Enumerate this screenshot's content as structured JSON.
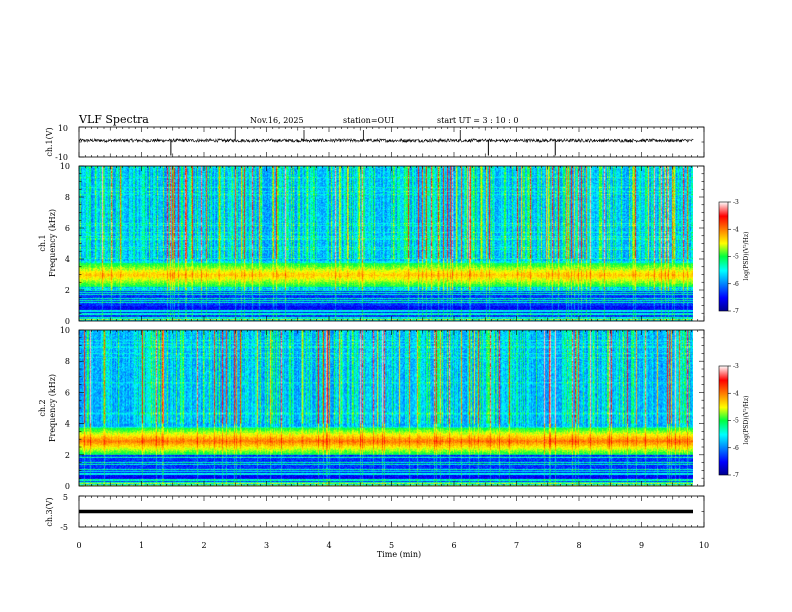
{
  "header": {
    "title": "VLF Spectra",
    "date": "Nov.16, 2025",
    "station": "station=OUI",
    "start": "start  UT =   3  : 10 : 0"
  },
  "chart_data": [
    {
      "type": "line",
      "ylabel": "ch.1(V)",
      "ylim": [
        -10,
        10
      ],
      "ytick_labels": [
        "10",
        "-10"
      ],
      "x_ticks": [
        0,
        1,
        2,
        3,
        4,
        5,
        6,
        7,
        8,
        9,
        10
      ],
      "description_series": "noisy waveform around +1 V with sparse negative spikes",
      "baseline_v": 1,
      "spikes_min": [
        1.47,
        6.55,
        7.62
      ]
    },
    {
      "type": "heatmap",
      "ylabel": "ch.1\nFrequency (kHz)",
      "ylabel_line1": "ch.1",
      "ylabel_line2": "Frequency (kHz)",
      "ylim": [
        0,
        10
      ],
      "ytick_labels": [
        "0",
        "2",
        "4",
        "6",
        "8",
        "10"
      ],
      "xlim": [
        0,
        9.83
      ],
      "band_ranges_khz": [
        [
          2.2,
          3.8
        ]
      ],
      "colorbar": {
        "label": "log(PSD)(V²/Hz)",
        "ticks": [
          "-3",
          "-4",
          "-5",
          "-6",
          "-7"
        ],
        "range": [
          -7,
          -3
        ]
      }
    },
    {
      "type": "heatmap",
      "ylabel_line1": "ch.2",
      "ylabel_line2": "Frequency (kHz)",
      "ylim": [
        0,
        10
      ],
      "ytick_labels": [
        "0",
        "2",
        "4",
        "6",
        "8",
        "10"
      ],
      "xlim": [
        0,
        9.83
      ],
      "band_ranges_khz": [
        [
          2.0,
          3.8
        ]
      ],
      "colorbar": {
        "label": "log(PSD)(V²/Hz)",
        "ticks": [
          "-3",
          "-4",
          "-5",
          "-6",
          "-7"
        ],
        "range": [
          -7,
          -3
        ]
      }
    },
    {
      "type": "line",
      "ylabel": "ch.3(V)",
      "ylim": [
        -5,
        5
      ],
      "ytick_labels": [
        "5",
        "-5"
      ],
      "constant_value_v": 0,
      "xlabel": "Time (min)",
      "x_tick_labels": [
        "0",
        "1",
        "2",
        "3",
        "4",
        "5",
        "6",
        "7",
        "8",
        "9",
        "10"
      ],
      "xlim": [
        0,
        10
      ]
    }
  ]
}
